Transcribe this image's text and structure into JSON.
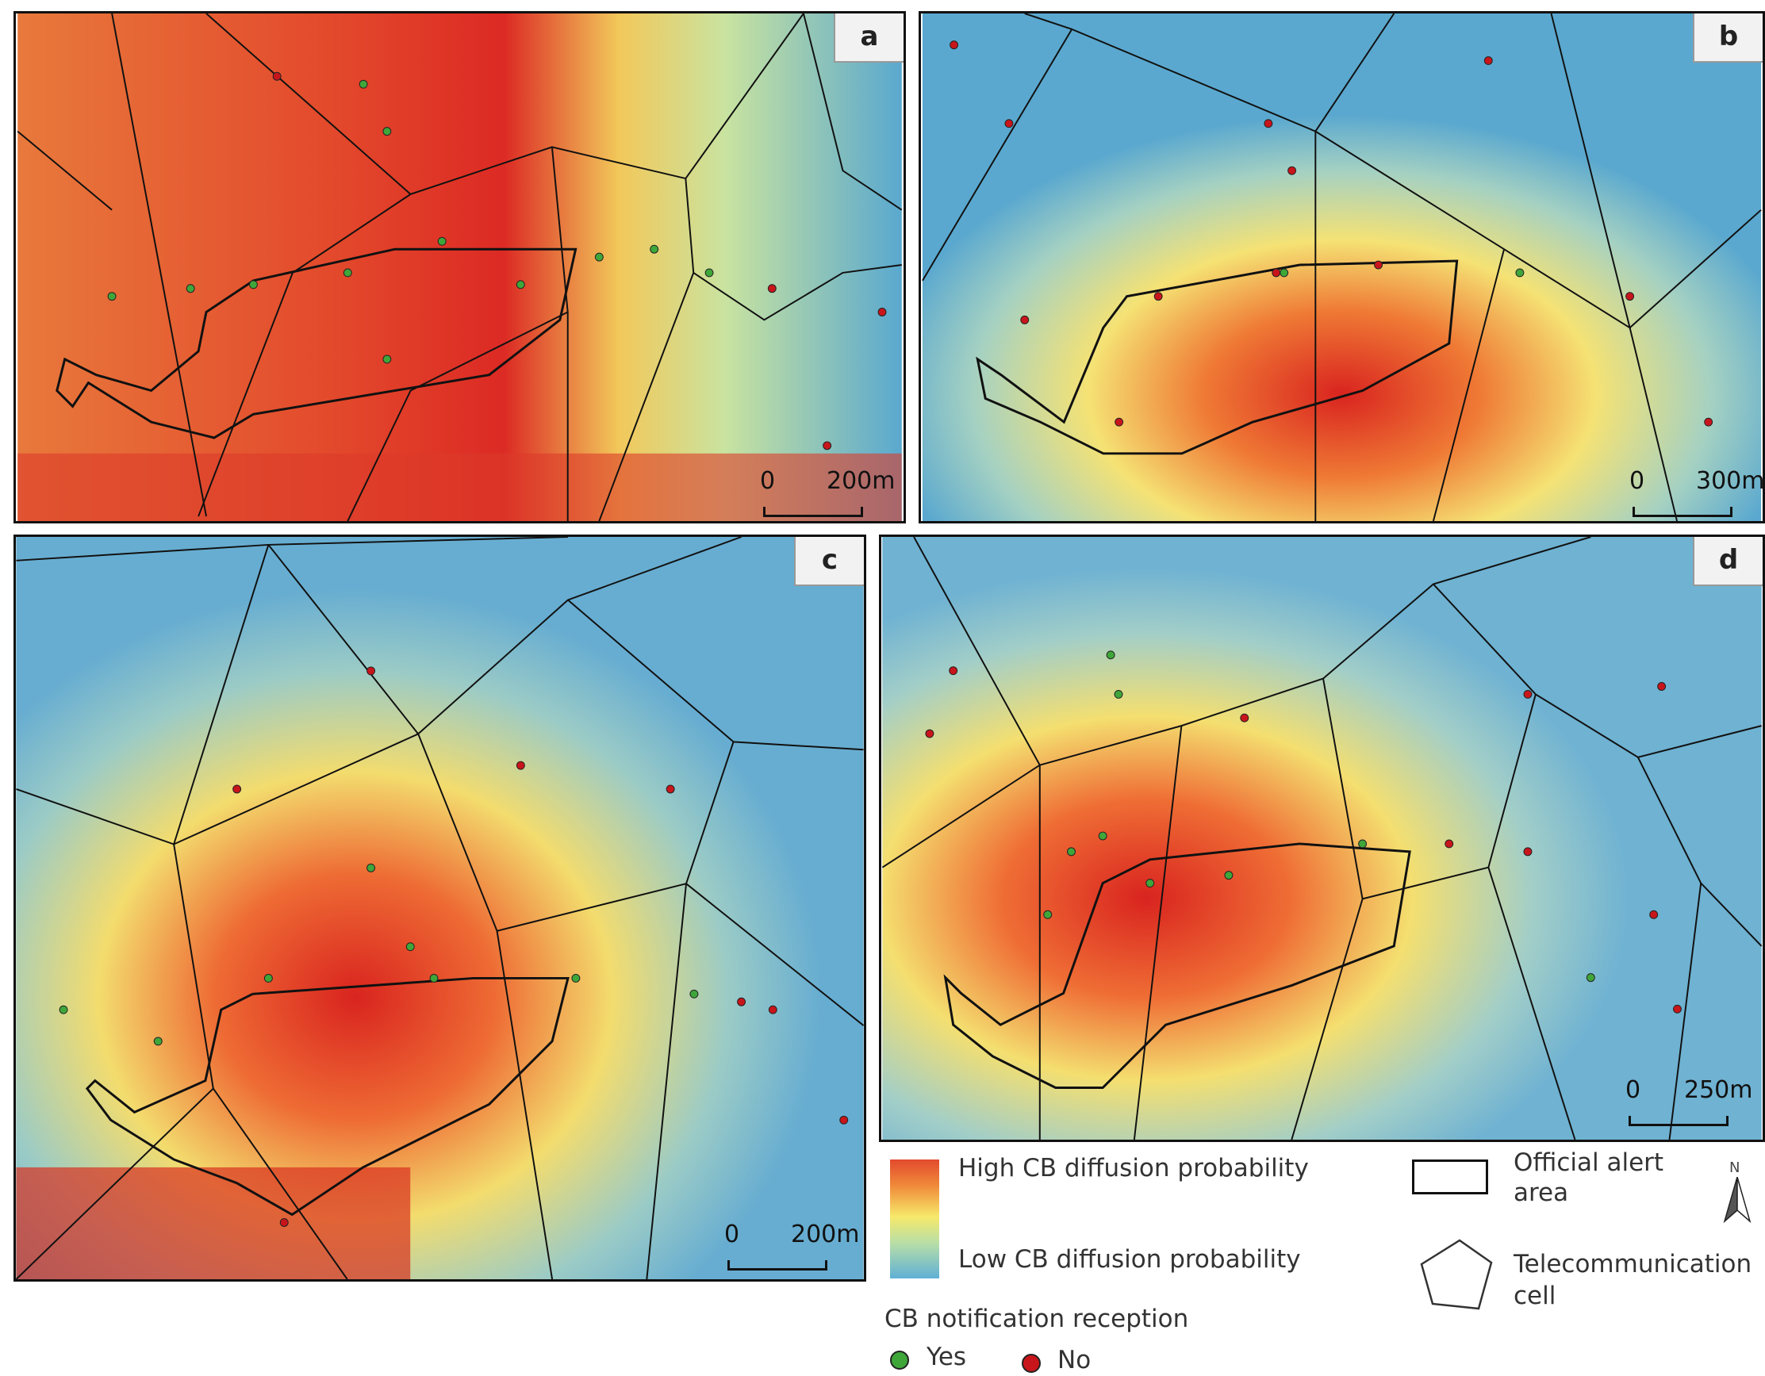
{
  "panels": [
    {
      "id": "a",
      "scale": {
        "zero": "0",
        "dist": "200m"
      },
      "colors": {
        "base": "#e66b3a",
        "hot": "#d9241f",
        "cool": "#5aa8cf"
      }
    },
    {
      "id": "b",
      "scale": {
        "zero": "0",
        "dist": "300m"
      },
      "colors": {
        "base": "#6aaed0",
        "hot": "#d9241f",
        "cool": "#4a9dca"
      }
    },
    {
      "id": "c",
      "scale": {
        "zero": "0",
        "dist": "200m"
      },
      "colors": {
        "base": "#76b6d1",
        "hot": "#d9241f",
        "cool": "#4a9dca"
      }
    },
    {
      "id": "d",
      "scale": {
        "zero": "0",
        "dist": "250m"
      },
      "colors": {
        "base": "#7fbad2",
        "hot": "#d9241f",
        "cool": "#4a9dca"
      }
    }
  ],
  "legend": {
    "high": "High CB diffusion probability",
    "low": "Low CB diffusion probability",
    "alert_area": "Official alert area",
    "cell": "Telecommunication cell",
    "reception_title": "CB notification reception",
    "yes": "Yes",
    "no": "No",
    "north": "N"
  },
  "colors": {
    "yes": "#3fa63a",
    "no": "#c8151b",
    "line": "#111111"
  }
}
